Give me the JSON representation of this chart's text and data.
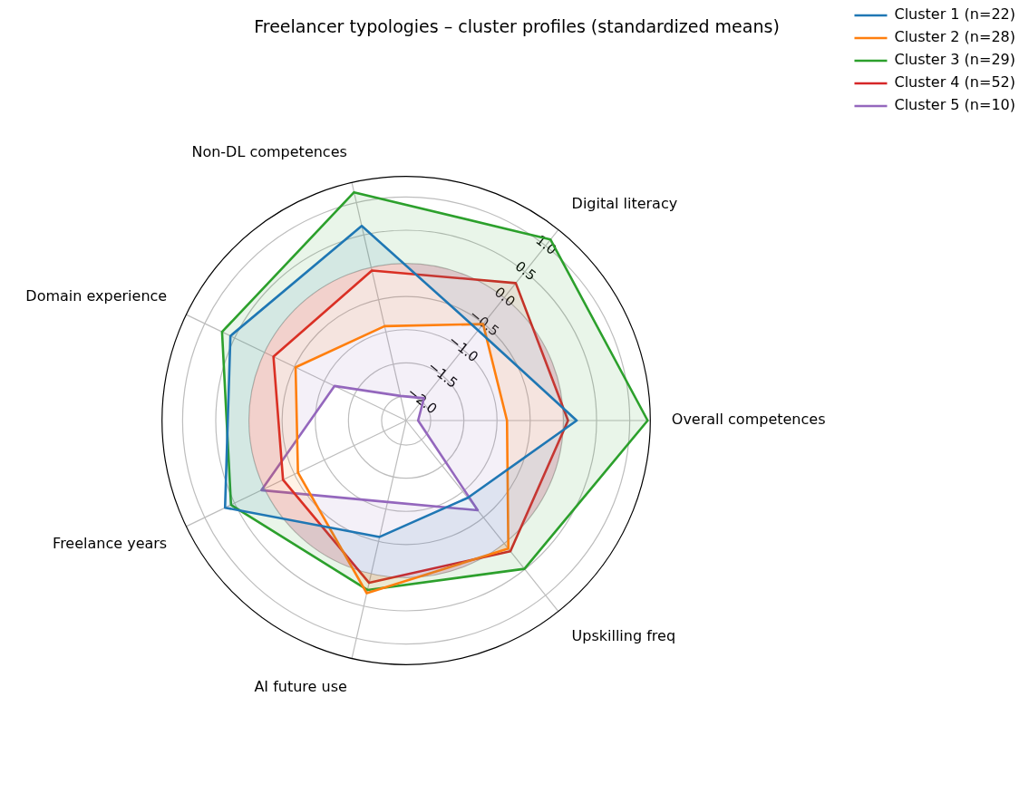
{
  "chart_data": {
    "type": "radar",
    "title": "Freelancer typologies – cluster profiles (standardized means)",
    "categories": [
      "Digital literacy",
      "Overall competences",
      "Upskilling freq",
      "AI future use",
      "Freelance years",
      "Domain experience",
      "Non-DL competences"
    ],
    "series": [
      {
        "name": "Cluster 1 (n=22)",
        "color": "#1f77b4",
        "values": [
          -0.63,
          0.2,
          -0.88,
          -0.57,
          0.66,
          0.57,
          0.64
        ]
      },
      {
        "name": "Cluster 2 (n=28)",
        "color": "#ff7f0e",
        "values": [
          -0.51,
          -0.85,
          0.1,
          0.3,
          -0.56,
          -0.52,
          -0.91
        ]
      },
      {
        "name": "Cluster 3 (n=29)",
        "color": "#2ca02c",
        "values": [
          1.12,
          1.27,
          0.49,
          0.25,
          0.56,
          0.71,
          1.16
        ]
      },
      {
        "name": "Cluster 4 (n=52)",
        "color": "#d62728",
        "values": [
          0.28,
          0.07,
          0.15,
          0.14,
          -0.31,
          -0.15,
          -0.05
        ]
      },
      {
        "name": "Cluster 5 (n=10)",
        "color": "#9467bd",
        "values": [
          -1.94,
          -2.19,
          -0.64,
          -1.11,
          0.05,
          -1.17,
          -1.99
        ]
      }
    ],
    "ylim": [
      -2.37,
      1.31
    ],
    "yticks": [
      {
        "value": -2,
        "label": "−2.0"
      },
      {
        "value": -1.5,
        "label": "−1.5"
      },
      {
        "value": -1,
        "label": "−1.0"
      },
      {
        "value": -0.5,
        "label": "−0.5"
      },
      {
        "value": 0,
        "label": "0.0"
      },
      0.5,
      {
        "value": 1,
        "label": "1.0"
      }
    ],
    "grid": true,
    "legend": "top right",
    "marker": "none",
    "line_style": "solid"
  }
}
